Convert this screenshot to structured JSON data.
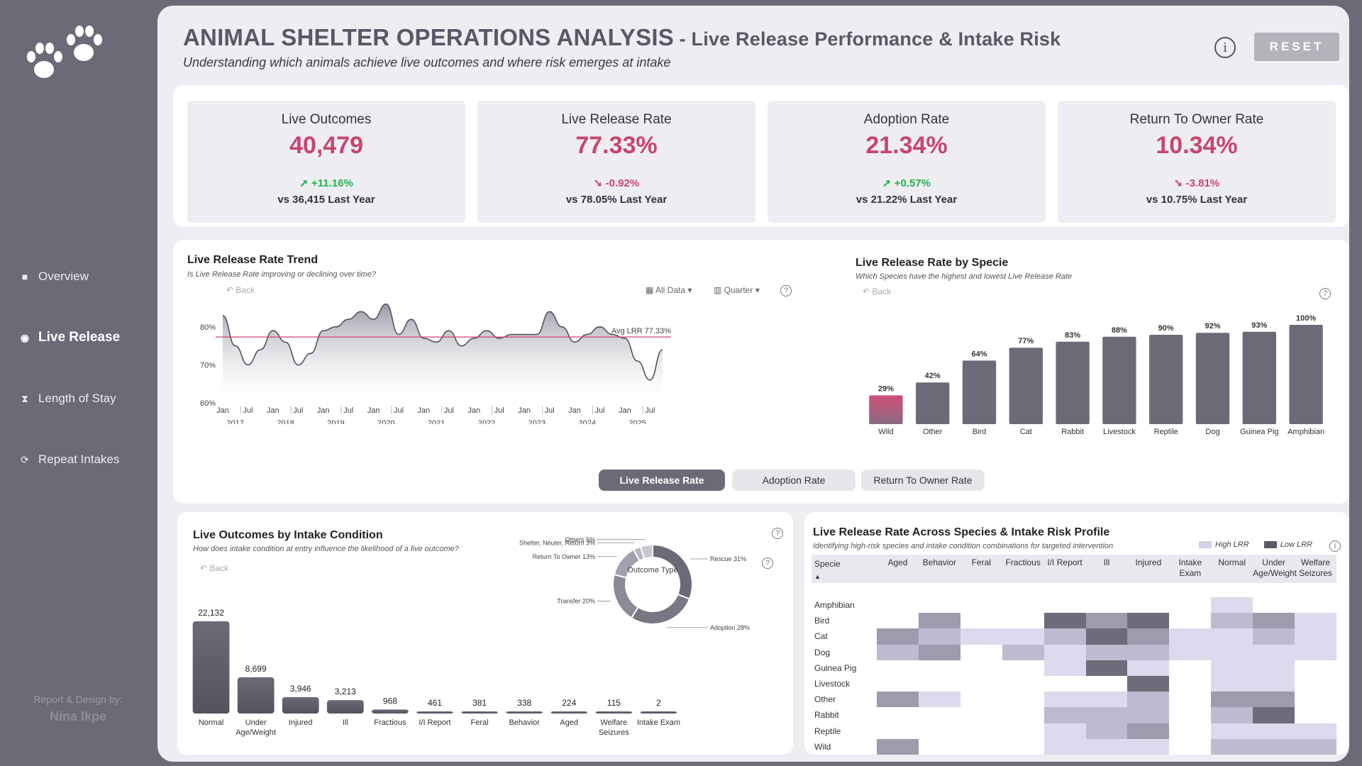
{
  "sidebar": {
    "nav": [
      {
        "label": "Overview",
        "icon": "square-icon",
        "active": false
      },
      {
        "label": "Live Release",
        "icon": "radio-dot-icon",
        "active": true
      },
      {
        "label": "Length of Stay",
        "icon": "hourglass-icon",
        "active": false
      },
      {
        "label": "Repeat Intakes",
        "icon": "refresh-icon",
        "active": false
      }
    ],
    "credit_label": "Report & Design by:",
    "credit_name": "Nina Ikpe"
  },
  "header": {
    "title": "ANIMAL SHELTER OPERATIONS ANALYSIS",
    "title_suffix": " - Live Release Performance & Intake Risk",
    "subtitle": "Understanding which animals achieve live outcomes and where risk emerges at intake",
    "info_icon": "i",
    "reset_label": "RESET"
  },
  "kpis": [
    {
      "label": "Live Outcomes",
      "value": "40,479",
      "delta": "+11.16%",
      "direction": "up",
      "comparison": "vs 36,415 Last Year"
    },
    {
      "label": "Live Release Rate",
      "value": "77.33%",
      "delta": "-0.92%",
      "direction": "down",
      "comparison": "vs 78.05% Last Year"
    },
    {
      "label": "Adoption Rate",
      "value": "21.34%",
      "delta": "+0.57%",
      "direction": "up",
      "comparison": "vs 21.22% Last Year"
    },
    {
      "label": "Return To Owner Rate",
      "value": "10.34%",
      "delta": "-3.81%",
      "direction": "down",
      "comparison": "vs 10.75% Last Year"
    }
  ],
  "trend": {
    "title": "Live Release Rate Trend",
    "subtitle": "Is Live Release Rate improving or declining over time?",
    "back_label": "Back",
    "filter_label": "All Data",
    "granularity_label": "Quarter",
    "help_icon": "?",
    "avg_label": "Avg LRR 77.33%"
  },
  "species": {
    "title": "Live Release Rate by Specie",
    "subtitle": "Which Species have the highest and lowest Live Release Rate",
    "back_label": "Back",
    "help_icon": "?"
  },
  "toggles": [
    "Live Release Rate",
    "Adoption Rate",
    "Return To Owner Rate"
  ],
  "condition": {
    "title": "Live Outcomes by Intake Condition",
    "subtitle": "How does intake condition at entry influence the likelihood of a live outcome?",
    "back_label": "Back",
    "help_icon": "?",
    "donut_center": "Outcome Type",
    "donut_help_icon": "?"
  },
  "heatmap": {
    "title": "Live Release Rate Across Species & Intake Risk Profile",
    "subtitle": "Identifying high-risk species and intake condition combinations for targeted intervention",
    "legend_high": "High LRR",
    "legend_low": "Low LRR",
    "info_icon": "i",
    "corner_label": "Specie",
    "columns": [
      "Aged",
      "Behavior",
      "Feral",
      "Fractious",
      "I/I Report",
      "Ill",
      "Injured",
      "Intake Exam",
      "Normal",
      "Under Age/Weight",
      "Welfare Seizures"
    ],
    "rows": [
      "Amphibian",
      "Bird",
      "Cat",
      "Dog",
      "Guinea Pig",
      "Livestock",
      "Other",
      "Rabbit",
      "Reptile",
      "Wild"
    ],
    "cells": [
      [
        0,
        0,
        0,
        0,
        0,
        0,
        0,
        0,
        1,
        0,
        0
      ],
      [
        0,
        3,
        0,
        0,
        4,
        3,
        4,
        0,
        2,
        3,
        1
      ],
      [
        3,
        2,
        1,
        1,
        2,
        4,
        3,
        1,
        1,
        2,
        1
      ],
      [
        2,
        3,
        0,
        2,
        1,
        2,
        2,
        1,
        1,
        1,
        1
      ],
      [
        0,
        0,
        0,
        0,
        1,
        4,
        1,
        0,
        1,
        1,
        0
      ],
      [
        0,
        0,
        0,
        0,
        0,
        0,
        4,
        0,
        1,
        1,
        0
      ],
      [
        3,
        1,
        0,
        0,
        1,
        1,
        2,
        0,
        3,
        3,
        0
      ],
      [
        0,
        0,
        0,
        0,
        2,
        2,
        2,
        0,
        2,
        4,
        0
      ],
      [
        0,
        0,
        0,
        0,
        1,
        2,
        3,
        0,
        1,
        1,
        1
      ],
      [
        3,
        0,
        0,
        0,
        1,
        1,
        1,
        0,
        2,
        2,
        2
      ]
    ],
    "colors": [
      "#ffffff",
      "#dcdaec",
      "#bebbd0",
      "#9e9bac",
      "#6e6b7a"
    ]
  },
  "colors": {
    "accent": "#c8456f",
    "primary": "#6d6a78",
    "up": "#22b34a",
    "avg_line": "#c8456f"
  },
  "chart_data": [
    {
      "type": "area",
      "title": "Live Release Rate Trend",
      "ylabel": "",
      "ylim": [
        60,
        88
      ],
      "y_ticks": [
        "80%",
        "70%",
        "60%"
      ],
      "x_tick_labels": [
        "Jan",
        "Jul",
        "Jan",
        "Jul",
        "Jan",
        "Jul",
        "Jan",
        "Jul",
        "Jan",
        "Jul",
        "Jan",
        "Jul",
        "Jan",
        "Jul",
        "Jan",
        "Jul",
        "Jan",
        "Jul"
      ],
      "year_labels": [
        "2017",
        "2018",
        "2019",
        "2020",
        "2021",
        "2022",
        "2023",
        "2024",
        "2025"
      ],
      "x": [
        2017.0,
        2017.25,
        2017.5,
        2017.75,
        2018.0,
        2018.25,
        2018.5,
        2018.75,
        2019.0,
        2019.25,
        2019.5,
        2019.75,
        2020.0,
        2020.25,
        2020.5,
        2020.75,
        2021.0,
        2021.25,
        2021.5,
        2021.75,
        2022.0,
        2022.25,
        2022.5,
        2022.75,
        2023.0,
        2023.25,
        2023.5,
        2023.75,
        2024.0,
        2024.25,
        2024.5,
        2024.75,
        2025.0,
        2025.25,
        2025.5,
        2025.75
      ],
      "values": [
        83,
        75,
        70,
        74,
        79,
        76,
        70,
        73,
        79,
        80,
        82,
        84,
        82,
        86,
        78,
        82,
        77,
        76,
        79,
        75,
        77,
        79,
        77,
        78,
        78,
        78,
        84,
        80,
        76,
        78,
        80,
        78,
        77,
        71,
        66,
        74
      ],
      "average": 77.33,
      "average_label": "Avg LRR 77.33%"
    },
    {
      "type": "bar",
      "title": "Live Release Rate by Specie",
      "categories": [
        "Wild",
        "Other",
        "Bird",
        "Cat",
        "Rabbit",
        "Livestock",
        "Reptile",
        "Dog",
        "Guinea Pig",
        "Amphibian"
      ],
      "values": [
        29,
        42,
        64,
        77,
        83,
        88,
        90,
        92,
        93,
        100
      ],
      "value_labels": [
        "29%",
        "42%",
        "64%",
        "77%",
        "83%",
        "88%",
        "90%",
        "92%",
        "93%",
        "100%"
      ],
      "ylim": [
        0,
        100
      ],
      "highlight_category": "Wild"
    },
    {
      "type": "bar",
      "title": "Live Outcomes by Intake Condition",
      "categories": [
        "Normal",
        "Under Age/Weight",
        "Injured",
        "Ill",
        "Fractious",
        "I/I Report",
        "Feral",
        "Behavior",
        "Aged",
        "Welfare Seizures",
        "Intake Exam"
      ],
      "values": [
        22132,
        8699,
        3946,
        3213,
        968,
        461,
        381,
        338,
        224,
        115,
        2
      ],
      "value_labels": [
        "22,132",
        "8,699",
        "3,946",
        "3,213",
        "968",
        "461",
        "381",
        "338",
        "224",
        "115",
        "2"
      ],
      "ylim": [
        0,
        22132
      ]
    },
    {
      "type": "pie",
      "title": "Outcome Type",
      "labels": [
        "Rescue 31%",
        "Adoption 28%",
        "Transfer 20%",
        "Return To Owner 13%",
        "Shelter, Neuter, Return 3%",
        "Others 5%"
      ],
      "values": [
        31,
        28,
        20,
        13,
        3,
        5
      ]
    }
  ]
}
